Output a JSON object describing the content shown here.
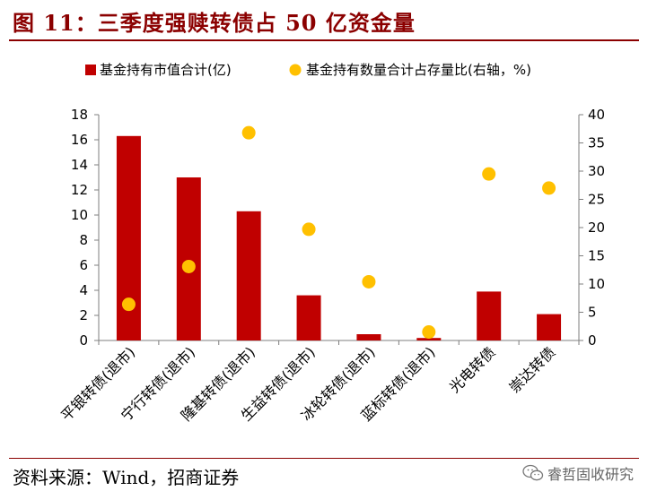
{
  "page": {
    "title": "图 11：三季度强赎转债占 50 亿资金量",
    "source": "资料来源：Wind，招商证券",
    "watermark": "睿哲固收研究"
  },
  "colors": {
    "bar": "#c00000",
    "dot": "#ffc000",
    "title": "#8b0000",
    "axis": "#7f7f7f"
  },
  "chart_data": {
    "type": "bar",
    "categories": [
      "平银转债(退市)",
      "宁行转债(退市)",
      "隆基转债(退市)",
      "生益转债(退市)",
      "冰轮转债(退市)",
      "蓝标转债(退市)",
      "光电转债",
      "崇达转债"
    ],
    "series": [
      {
        "name": "基金持有市值合计(亿)",
        "type": "bar",
        "axis": "left",
        "values": [
          16.3,
          13.0,
          10.3,
          3.6,
          0.5,
          0.2,
          3.9,
          2.1
        ]
      },
      {
        "name": "基金持有数量合计占存量比(右轴，%)",
        "type": "scatter",
        "axis": "right",
        "values": [
          6.4,
          13.1,
          36.8,
          19.7,
          10.4,
          1.5,
          29.5,
          27.0
        ]
      }
    ],
    "ylim": [
      0,
      18
    ],
    "yticks": [
      0,
      2,
      4,
      6,
      8,
      10,
      12,
      14,
      16,
      18
    ],
    "y2lim": [
      0,
      40
    ],
    "y2ticks": [
      0,
      5,
      10,
      15,
      20,
      25,
      30,
      35,
      40
    ],
    "legend": "top",
    "grid": false
  }
}
